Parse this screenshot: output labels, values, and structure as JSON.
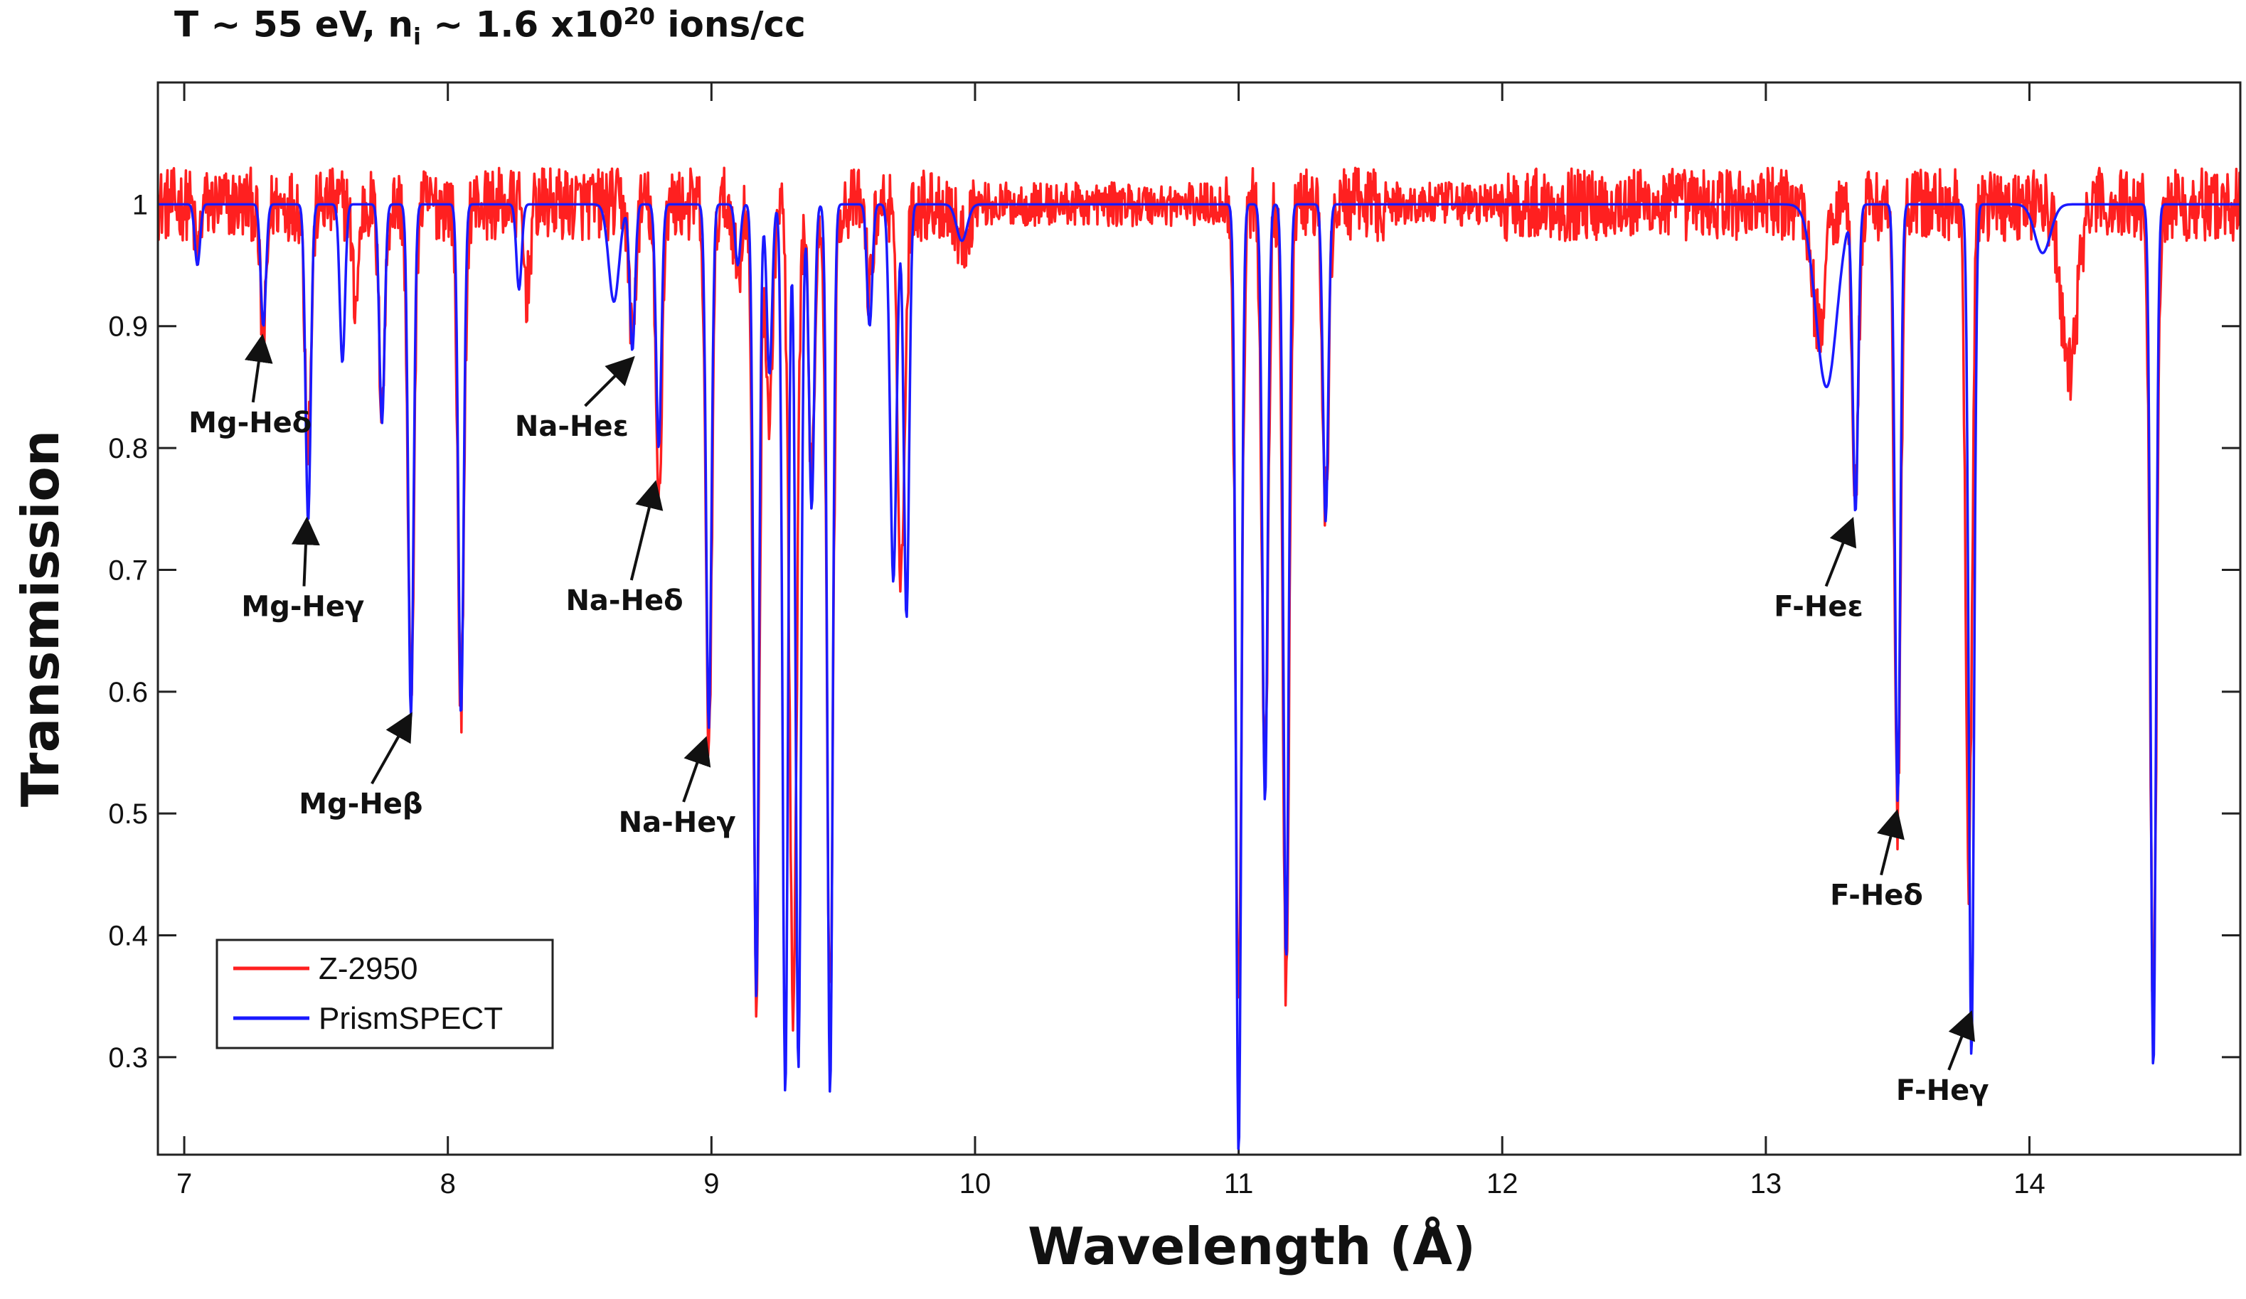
{
  "chart_data": {
    "type": "line",
    "title_parts": {
      "main": "T ~ 55 eV, n",
      "sub": "i",
      "mid": " ~ 1.6 x10",
      "sup": "20",
      "end": " ions/cc"
    },
    "xlabel": "Wavelength (Å)",
    "ylabel": "Transmission",
    "xlim": [
      6.9,
      14.8
    ],
    "ylim": [
      0.22,
      1.1
    ],
    "xticks": [
      "7",
      "8",
      "9",
      "10",
      "11",
      "12",
      "13",
      "14"
    ],
    "yticks": [
      "0.3",
      "0.4",
      "0.5",
      "0.6",
      "0.7",
      "0.8",
      "0.9",
      "1"
    ],
    "legend": {
      "position": "bottom-left",
      "entries": [
        {
          "name": "Z-2950",
          "color": "#ff2020"
        },
        {
          "name": "PrismSPECT",
          "color": "#1a1aff"
        }
      ]
    },
    "series": [
      {
        "name": "Z-2950",
        "color": "#ff2020",
        "baseline": 1.0,
        "noise": 0.03,
        "lines": [
          [
            7.05,
            0.96,
            0.01
          ],
          [
            7.3,
            0.89,
            0.012
          ],
          [
            7.47,
            0.81,
            0.012
          ],
          [
            7.65,
            0.92,
            0.012
          ],
          [
            7.75,
            0.84,
            0.012
          ],
          [
            7.86,
            0.6,
            0.012
          ],
          [
            8.05,
            0.59,
            0.012
          ],
          [
            8.3,
            0.93,
            0.012
          ],
          [
            8.7,
            0.89,
            0.012
          ],
          [
            8.8,
            0.76,
            0.012
          ],
          [
            8.99,
            0.56,
            0.012
          ],
          [
            9.1,
            0.94,
            0.012
          ],
          [
            9.17,
            0.35,
            0.012
          ],
          [
            9.22,
            0.82,
            0.012
          ],
          [
            9.31,
            0.33,
            0.014
          ],
          [
            9.38,
            0.78,
            0.012
          ],
          [
            9.45,
            0.35,
            0.012
          ],
          [
            9.6,
            0.93,
            0.012
          ],
          [
            9.72,
            0.7,
            0.014
          ],
          [
            9.95,
            0.97,
            0.02
          ],
          [
            11.0,
            0.35,
            0.012
          ],
          [
            11.1,
            0.54,
            0.012
          ],
          [
            11.18,
            0.35,
            0.012
          ],
          [
            11.33,
            0.75,
            0.012
          ],
          [
            13.2,
            0.9,
            0.025
          ],
          [
            13.34,
            0.77,
            0.012
          ],
          [
            13.5,
            0.5,
            0.012
          ],
          [
            13.77,
            0.45,
            0.012
          ],
          [
            14.15,
            0.86,
            0.03
          ],
          [
            14.47,
            0.34,
            0.012
          ]
        ]
      },
      {
        "name": "PrismSPECT",
        "color": "#1a1aff",
        "baseline": 1.0,
        "noise": 0.0,
        "lines": [
          [
            7.05,
            0.95,
            0.01
          ],
          [
            7.3,
            0.9,
            0.01
          ],
          [
            7.47,
            0.74,
            0.01
          ],
          [
            7.6,
            0.87,
            0.01
          ],
          [
            7.75,
            0.82,
            0.01
          ],
          [
            7.86,
            0.58,
            0.01
          ],
          [
            8.05,
            0.58,
            0.01
          ],
          [
            8.27,
            0.93,
            0.01
          ],
          [
            8.63,
            0.92,
            0.02
          ],
          [
            8.7,
            0.88,
            0.01
          ],
          [
            8.8,
            0.8,
            0.01
          ],
          [
            8.99,
            0.57,
            0.01
          ],
          [
            9.1,
            0.95,
            0.01
          ],
          [
            9.17,
            0.35,
            0.01
          ],
          [
            9.22,
            0.86,
            0.01
          ],
          [
            9.28,
            0.27,
            0.01
          ],
          [
            9.33,
            0.29,
            0.01
          ],
          [
            9.38,
            0.75,
            0.01
          ],
          [
            9.45,
            0.27,
            0.01
          ],
          [
            9.6,
            0.9,
            0.01
          ],
          [
            9.69,
            0.69,
            0.012
          ],
          [
            9.74,
            0.66,
            0.01
          ],
          [
            9.95,
            0.97,
            0.02
          ],
          [
            11.0,
            0.22,
            0.01
          ],
          [
            11.1,
            0.51,
            0.01
          ],
          [
            11.18,
            0.38,
            0.01
          ],
          [
            11.33,
            0.74,
            0.01
          ],
          [
            13.23,
            0.85,
            0.04
          ],
          [
            13.34,
            0.75,
            0.01
          ],
          [
            13.5,
            0.51,
            0.01
          ],
          [
            13.78,
            0.3,
            0.01
          ],
          [
            14.05,
            0.96,
            0.03
          ],
          [
            14.47,
            0.29,
            0.01
          ]
        ]
      }
    ],
    "annotations": [
      {
        "label": "Mg-Heδ",
        "x": 7.3,
        "y": 0.895,
        "text_x": 7.25,
        "text_y": 0.813
      },
      {
        "label": "Mg-Heγ",
        "x": 7.47,
        "y": 0.745,
        "text_x": 7.45,
        "text_y": 0.662
      },
      {
        "label": "Mg-Heβ",
        "x": 7.86,
        "y": 0.585,
        "text_x": 7.67,
        "text_y": 0.5
      },
      {
        "label": "Na-Heε",
        "x": 8.7,
        "y": 0.878,
        "text_x": 8.47,
        "text_y": 0.81
      },
      {
        "label": "Na-Heδ",
        "x": 8.79,
        "y": 0.775,
        "text_x": 8.67,
        "text_y": 0.667
      },
      {
        "label": "Na-Heγ",
        "x": 8.98,
        "y": 0.565,
        "text_x": 8.87,
        "text_y": 0.485
      },
      {
        "label": "F-Heε",
        "x": 13.33,
        "y": 0.745,
        "text_x": 13.2,
        "text_y": 0.662
      },
      {
        "label": "F-Heδ",
        "x": 13.5,
        "y": 0.505,
        "text_x": 13.42,
        "text_y": 0.425
      },
      {
        "label": "F-Heγ",
        "x": 13.78,
        "y": 0.34,
        "text_x": 13.67,
        "text_y": 0.265
      }
    ]
  }
}
